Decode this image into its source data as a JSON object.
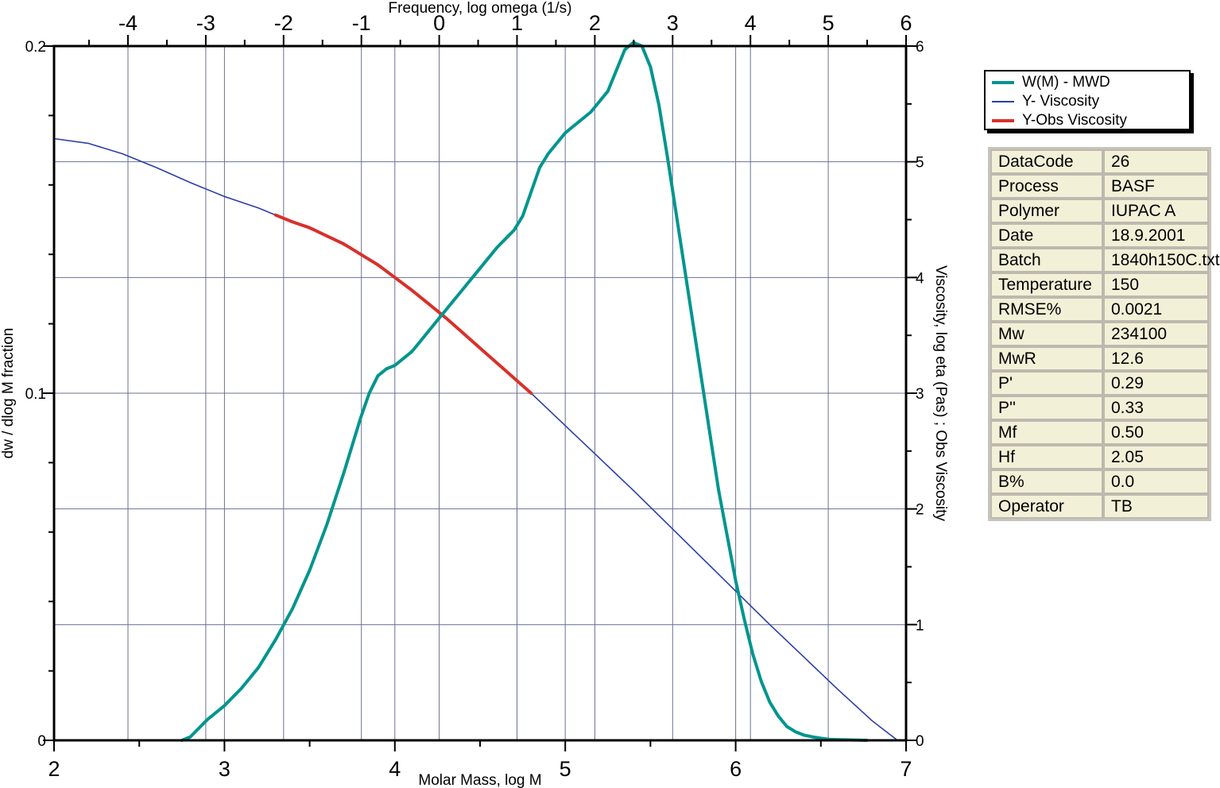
{
  "chart_data": {
    "type": "line",
    "x_bottom": {
      "label": "Molar Mass, log M",
      "range": [
        2,
        7
      ],
      "ticks": [
        "2",
        "3",
        "4",
        "5",
        "6",
        "7"
      ]
    },
    "x_top": {
      "label": "Frequency, log omega (1/s)",
      "range": [
        -4.95,
        6.0
      ],
      "ticks": [
        "-4",
        "-3",
        "-2",
        "-1",
        "0",
        "1",
        "2",
        "3",
        "4",
        "5",
        "6"
      ]
    },
    "y_left": {
      "label": "dw / dlog M  fraction",
      "range": [
        0,
        0.2
      ],
      "ticks": [
        "0",
        "0.1",
        "0.2"
      ]
    },
    "y_right": {
      "label": "Viscosity, log eta (Pas) ; Obs Viscosity",
      "range": [
        0,
        6
      ],
      "ticks": [
        "0",
        "1",
        "2",
        "3",
        "4",
        "5",
        "6"
      ]
    },
    "grid": true,
    "legend_position": "right",
    "series": [
      {
        "name": "W(M) - MWD",
        "axis": "left",
        "color": "#00958e",
        "x": [
          2.75,
          2.8,
          2.9,
          3.0,
          3.1,
          3.2,
          3.3,
          3.4,
          3.5,
          3.6,
          3.7,
          3.8,
          3.85,
          3.9,
          3.95,
          4.0,
          4.05,
          4.1,
          4.15,
          4.2,
          4.3,
          4.4,
          4.5,
          4.6,
          4.7,
          4.75,
          4.8,
          4.85,
          4.9,
          4.95,
          5.0,
          5.05,
          5.1,
          5.15,
          5.2,
          5.25,
          5.3,
          5.35,
          5.4,
          5.45,
          5.5,
          5.55,
          5.6,
          5.65,
          5.7,
          5.75,
          5.8,
          5.85,
          5.9,
          5.95,
          6.0,
          6.05,
          6.1,
          6.15,
          6.2,
          6.25,
          6.3,
          6.35,
          6.4,
          6.45,
          6.5,
          6.55,
          6.6,
          6.7,
          6.77
        ],
        "y": [
          0.0,
          0.001,
          0.006,
          0.01,
          0.015,
          0.021,
          0.029,
          0.038,
          0.049,
          0.062,
          0.077,
          0.093,
          0.1,
          0.105,
          0.107,
          0.108,
          0.11,
          0.112,
          0.115,
          0.118,
          0.124,
          0.13,
          0.136,
          0.142,
          0.147,
          0.151,
          0.158,
          0.165,
          0.169,
          0.172,
          0.175,
          0.177,
          0.179,
          0.181,
          0.184,
          0.187,
          0.193,
          0.199,
          0.201,
          0.2,
          0.194,
          0.183,
          0.168,
          0.152,
          0.136,
          0.12,
          0.104,
          0.088,
          0.072,
          0.059,
          0.046,
          0.035,
          0.025,
          0.017,
          0.011,
          0.007,
          0.004,
          0.0025,
          0.0015,
          0.001,
          0.0006,
          0.0003,
          0.0002,
          0.0001,
          0.0
        ]
      },
      {
        "name": "Y- Viscosity",
        "axis": "right",
        "color": "#2b3ea8",
        "x": [
          2.0,
          2.2,
          2.4,
          2.6,
          2.8,
          3.0,
          3.2,
          3.3,
          3.4,
          3.6,
          3.8,
          4.0,
          4.2,
          4.4,
          4.6,
          4.8,
          5.0,
          5.2,
          5.4,
          5.6,
          5.8,
          6.0,
          6.2,
          6.4,
          6.6,
          6.8,
          6.95
        ],
        "y": [
          5.2,
          5.16,
          5.07,
          4.95,
          4.82,
          4.7,
          4.6,
          4.54,
          4.48,
          4.36,
          4.2,
          4.0,
          3.77,
          3.52,
          3.26,
          3.0,
          2.72,
          2.44,
          2.16,
          1.87,
          1.58,
          1.29,
          1.0,
          0.72,
          0.44,
          0.17,
          0.0
        ]
      },
      {
        "name": "Y-Obs Viscosity",
        "axis": "right",
        "color": "#d9302a",
        "x": [
          3.3,
          3.4,
          3.5,
          3.6,
          3.7,
          3.8,
          3.9,
          4.0,
          4.1,
          4.2,
          4.3,
          4.4,
          4.5,
          4.6,
          4.7,
          4.8
        ],
        "y": [
          4.54,
          4.48,
          4.43,
          4.36,
          4.29,
          4.2,
          4.11,
          4.0,
          3.89,
          3.77,
          3.65,
          3.52,
          3.39,
          3.26,
          3.13,
          3.0
        ]
      }
    ]
  },
  "legend": {
    "items": [
      {
        "label": "W(M) - MWD",
        "color": "#00958e",
        "weight": 4
      },
      {
        "label": "Y- Viscosity",
        "color": "#2b3ea8",
        "weight": 2
      },
      {
        "label": "Y-Obs Viscosity",
        "color": "#d9302a",
        "weight": 4
      }
    ]
  },
  "info_table": {
    "rows": [
      {
        "key": "DataCode",
        "value": "26"
      },
      {
        "key": "Process",
        "value": "BASF"
      },
      {
        "key": "Polymer",
        "value": "IUPAC A"
      },
      {
        "key": "Date",
        "value": "18.9.2001"
      },
      {
        "key": "Batch",
        "value": "1840h150C.txt"
      },
      {
        "key": "Temperature",
        "value": "150"
      },
      {
        "key": "RMSE%",
        "value": "0.0021"
      },
      {
        "key": "Mw",
        "value": "234100"
      },
      {
        "key": "MwR",
        "value": "12.6"
      },
      {
        "key": "P'",
        "value": "0.29"
      },
      {
        "key": "P''",
        "value": "0.33"
      },
      {
        "key": "Mf",
        "value": "0.50"
      },
      {
        "key": "Hf",
        "value": "2.05"
      },
      {
        "key": "B%",
        "value": "0.0"
      },
      {
        "key": "Operator",
        "value": "TB"
      }
    ]
  }
}
